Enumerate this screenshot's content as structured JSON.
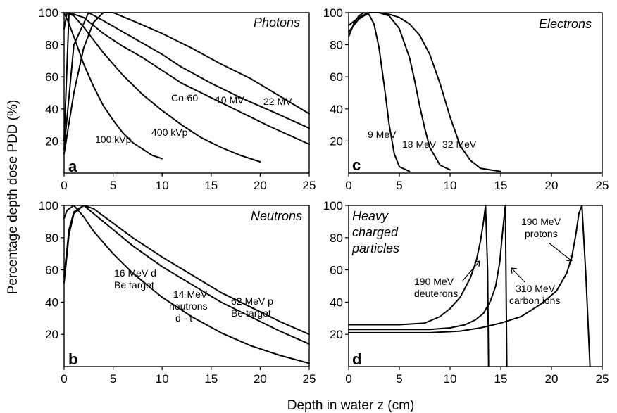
{
  "figure": {
    "ylabel": "Percentage depth dose PDD (%)",
    "xlabel": "Depth in water z (cm)"
  },
  "chart_data": [
    {
      "panel": "a",
      "type": "line",
      "title": "Photons",
      "xlim": [
        0,
        25
      ],
      "ylim": [
        0,
        100
      ],
      "xticks": [
        0,
        5,
        10,
        15,
        20,
        25
      ],
      "yticks": [
        20,
        40,
        60,
        80,
        100
      ],
      "grid": false,
      "series": [
        {
          "name": "100 kVp",
          "x": [
            0,
            0.5,
            1,
            2,
            3,
            4,
            5,
            6,
            7,
            8,
            9,
            10
          ],
          "y": [
            100,
            93,
            85,
            68,
            54,
            42,
            33,
            25,
            19,
            15,
            11,
            9
          ]
        },
        {
          "name": "400 kVp",
          "x": [
            0,
            0.3,
            1,
            2,
            3,
            4,
            5,
            6,
            8,
            10,
            12,
            14,
            16,
            18,
            20
          ],
          "y": [
            90,
            100,
            98,
            91,
            83,
            75,
            68,
            61,
            49,
            39,
            30,
            22,
            16,
            11,
            7
          ]
        },
        {
          "name": "Co-60",
          "x": [
            0,
            0.5,
            2,
            4,
            6,
            8,
            10,
            12,
            15,
            18,
            21,
            25
          ],
          "y": [
            20,
            100,
            97,
            87,
            79,
            72,
            64,
            56,
            47,
            38,
            29,
            18
          ]
        },
        {
          "name": "10 MV",
          "x": [
            0,
            1,
            2.5,
            4,
            6,
            8,
            10,
            12,
            15,
            18,
            21,
            25
          ],
          "y": [
            15,
            80,
            100,
            95,
            88,
            81,
            74,
            66,
            56,
            47,
            39,
            28
          ]
        },
        {
          "name": "22 MV",
          "x": [
            0,
            1,
            2,
            3,
            4,
            5,
            7,
            10,
            13,
            16,
            19,
            22,
            25
          ],
          "y": [
            12,
            50,
            78,
            94,
            100,
            100,
            95,
            87,
            78,
            68,
            59,
            48,
            37
          ]
        }
      ],
      "annotations": [
        "100 kVp",
        "400 kVp",
        "Co-60",
        "10 MV",
        "22 MV"
      ]
    },
    {
      "panel": "c",
      "type": "line",
      "title": "Electrons",
      "xlim": [
        0,
        25
      ],
      "ylim": [
        0,
        100
      ],
      "xticks": [
        0,
        5,
        10,
        15,
        20,
        25
      ],
      "yticks": [
        20,
        40,
        60,
        80,
        100
      ],
      "grid": false,
      "series": [
        {
          "name": "9 MeV",
          "x": [
            0,
            0.5,
            1,
            1.5,
            2,
            2.5,
            3,
            3.5,
            4,
            4.5,
            5,
            6
          ],
          "y": [
            85,
            93,
            98,
            100,
            99,
            93,
            78,
            55,
            30,
            12,
            4,
            1
          ]
        },
        {
          "name": "18 MeV",
          "x": [
            0,
            1,
            2,
            3,
            4,
            5,
            6,
            6.5,
            7,
            7.5,
            8,
            9,
            10
          ],
          "y": [
            88,
            96,
            100,
            100,
            98,
            90,
            72,
            58,
            42,
            28,
            16,
            5,
            2
          ]
        },
        {
          "name": "32 MeV",
          "x": [
            0,
            1,
            2,
            3,
            4,
            5,
            6,
            7,
            8,
            9,
            10,
            11,
            12,
            13,
            15
          ],
          "y": [
            92,
            97,
            100,
            100,
            99,
            97,
            93,
            86,
            74,
            56,
            35,
            17,
            8,
            3,
            1
          ]
        }
      ],
      "annotations": [
        "9 MeV",
        "18 MeV",
        "32 MeV"
      ]
    },
    {
      "panel": "b",
      "type": "line",
      "title": "Neutrons",
      "xlim": [
        0,
        25
      ],
      "ylim": [
        0,
        100
      ],
      "xticks": [
        0,
        5,
        10,
        15,
        20,
        25
      ],
      "yticks": [
        20,
        40,
        60,
        80,
        100
      ],
      "grid": false,
      "series": [
        {
          "name": "16 MeV d Be target",
          "x": [
            0,
            0.3,
            1,
            2,
            3,
            5,
            7,
            10,
            13,
            16,
            19,
            22,
            25
          ],
          "y": [
            92,
            97,
            100,
            93,
            84,
            70,
            58,
            43,
            31,
            21,
            13,
            7,
            2
          ]
        },
        {
          "name": "14 MeV neutrons d - t",
          "x": [
            0,
            0.5,
            1,
            2,
            3,
            5,
            7,
            10,
            13,
            16,
            19,
            22,
            25
          ],
          "y": [
            56,
            85,
            96,
            100,
            95,
            85,
            75,
            62,
            51,
            40,
            31,
            22,
            14
          ]
        },
        {
          "name": "62 MeV p Be target",
          "x": [
            0,
            0.5,
            1,
            2,
            3,
            5,
            7,
            10,
            13,
            16,
            19,
            22,
            25
          ],
          "y": [
            52,
            82,
            95,
            100,
            98,
            89,
            80,
            68,
            57,
            46,
            37,
            28,
            20
          ]
        }
      ],
      "annotations": [
        "16 MeV d",
        "Be target",
        "14 MeV",
        "neutrons",
        "d - t",
        "62 MeV p",
        "Be target"
      ]
    },
    {
      "panel": "d",
      "type": "line",
      "title": "Heavy charged particles",
      "xlim": [
        0,
        25
      ],
      "ylim": [
        0,
        100
      ],
      "xticks": [
        0,
        5,
        10,
        15,
        20,
        25
      ],
      "yticks": [
        20,
        40,
        60,
        80,
        100
      ],
      "grid": false,
      "series": [
        {
          "name": "190 MeV deuterons",
          "x": [
            0,
            5,
            7.5,
            9,
            10,
            11,
            12,
            12.6,
            13,
            13.3,
            13.5,
            13.7,
            13.8
          ],
          "y": [
            26,
            26,
            27,
            31,
            36,
            43,
            55,
            66,
            78,
            90,
            100,
            60,
            0
          ]
        },
        {
          "name": "310 MeV carbon ions",
          "x": [
            0,
            5,
            8,
            10,
            11.5,
            12.5,
            13.3,
            14,
            14.5,
            14.9,
            15.2,
            15.45,
            15.6
          ],
          "y": [
            23,
            23,
            23,
            24,
            26,
            29,
            33,
            41,
            50,
            65,
            85,
            100,
            0
          ]
        },
        {
          "name": "190 MeV protons",
          "x": [
            0,
            5,
            8,
            11,
            13,
            15,
            17,
            19,
            20.5,
            21.5,
            22,
            22.4,
            22.7,
            23,
            23.4,
            23.8
          ],
          "y": [
            21,
            21,
            21,
            22,
            24,
            27,
            31,
            39,
            47,
            58,
            68,
            82,
            95,
            100,
            55,
            0
          ]
        }
      ],
      "annotations": [
        "190 MeV",
        "deuterons",
        "310 MeV",
        "carbon ions",
        "190 MeV",
        "protons"
      ]
    }
  ],
  "labels": {
    "a": {
      "letter": "a",
      "l1": "100 kVp",
      "l2": "400 kVp",
      "l3": "Co-60",
      "l4": "10 MV",
      "l5": "22 MV"
    },
    "c": {
      "letter": "c",
      "l1": "9 MeV",
      "l2": "18 MeV",
      "l3": "32 MeV"
    },
    "b": {
      "letter": "b",
      "l1a": "16 MeV d",
      "l1b": "Be target",
      "l2a": "14 MeV",
      "l2b": "neutrons",
      "l2c": "d - t",
      "l3a": "62 MeV p",
      "l3b": "Be target"
    },
    "d": {
      "letter": "d",
      "t1": "Heavy",
      "t2": "charged",
      "t3": "particles",
      "l1a": "190 MeV",
      "l1b": "deuterons",
      "l2a": "310 MeV",
      "l2b": "carbon ions",
      "l3a": "190 MeV",
      "l3b": "protons"
    }
  }
}
